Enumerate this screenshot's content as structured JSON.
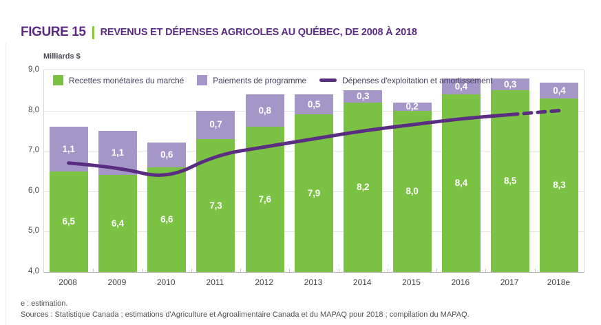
{
  "header": {
    "figure_label": "FIGURE 15",
    "title": "REVENUS ET DÉPENSES AGRICOLES AU QUÉBEC, DE 2008 À 2018"
  },
  "colors": {
    "title_purple": "#5b2b84",
    "separator_green": "#8cc63f",
    "bar_green": "#7bc143",
    "bar_purple": "#a596c8",
    "line_purple": "#5a2d82",
    "legend_text": "#45405a",
    "axis_text": "#4c4a52",
    "gridline": "#e4e4e4",
    "plot_border": "#d9d9d9",
    "axis_line": "#acacac"
  },
  "chart_data": {
    "type": "bar",
    "stacked": true,
    "title": "REVENUS ET DÉPENSES AGRICOLES AU QUÉBEC, DE 2008 À 2018",
    "ylabel": "Milliards $",
    "ylim": [
      4.0,
      9.0
    ],
    "ytick_step": 1.0,
    "ytick_labels": [
      "4,0",
      "5,0",
      "6,0",
      "7,0",
      "8,0",
      "9,0"
    ],
    "grid": true,
    "legend_position": "top-left-inside",
    "decimal_separator": ",",
    "categories": [
      "2008",
      "2009",
      "2010",
      "2011",
      "2012",
      "2013",
      "2014",
      "2015",
      "2016",
      "2017",
      "2018e"
    ],
    "series": [
      {
        "name": "Recettes monétaires du marché",
        "color": "#7bc143",
        "values": [
          6.5,
          6.4,
          6.6,
          7.3,
          7.6,
          7.9,
          8.2,
          8.0,
          8.4,
          8.5,
          8.3
        ]
      },
      {
        "name": "Paiements de programme",
        "color": "#a596c8",
        "values": [
          1.1,
          1.1,
          0.6,
          0.7,
          0.8,
          0.5,
          0.3,
          0.2,
          0.4,
          0.3,
          0.4
        ]
      }
    ],
    "line_series": {
      "name": "Dépenses d'exploitation et amortissement",
      "color": "#5a2d82",
      "values": [
        6.7,
        6.6,
        6.3,
        6.9,
        7.1,
        7.3,
        7.5,
        7.65,
        7.8,
        7.9,
        8.0
      ],
      "dashed_from_index": 9
    }
  },
  "footer": {
    "note": "e : estimation.",
    "sources": "Sources : Statistique Canada ; estimations d'Agriculture et Agroalimentaire Canada et du MAPAQ pour 2018 ; compilation du MAPAQ."
  }
}
